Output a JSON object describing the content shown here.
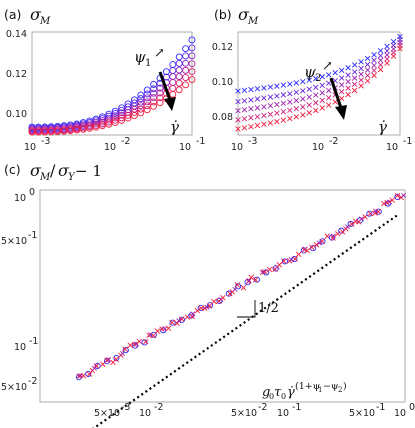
{
  "chart_data": [
    {
      "type": "scatter",
      "panel": "(a)",
      "label_parts": {
        "sigma": "σ",
        "sub": "M"
      },
      "x_scale": "log",
      "xlim": [
        0.001,
        0.1
      ],
      "ylim": [
        0.088,
        0.14
      ],
      "xticks": [
        "10",
        "10",
        "10"
      ],
      "xtick_exp": [
        "-3",
        "-2",
        "-1"
      ],
      "yticks": [
        "0.14",
        "0.12",
        "0.10"
      ],
      "ytick_values": [
        0.14,
        0.12,
        0.1
      ],
      "marker": "circle",
      "annotation": {
        "psi": "ψ",
        "sub": "1",
        "arrow": "↗"
      },
      "xaxis_symbol": "γ̇",
      "series": [
        {
          "color": "#2b2bff",
          "y_start": 0.092,
          "y_end": 0.136
        },
        {
          "color": "#5a28e6",
          "y_start": 0.0915,
          "y_end": 0.132
        },
        {
          "color": "#8326c8",
          "y_start": 0.091,
          "y_end": 0.128
        },
        {
          "color": "#b023a0",
          "y_start": 0.0905,
          "y_end": 0.124
        },
        {
          "color": "#d8206e",
          "y_start": 0.09,
          "y_end": 0.12
        },
        {
          "color": "#f21c3c",
          "y_start": 0.0895,
          "y_end": 0.116
        }
      ]
    },
    {
      "type": "scatter",
      "panel": "(b)",
      "label_parts": {
        "sigma": "σ",
        "sub": "M"
      },
      "x_scale": "log",
      "xlim": [
        0.001,
        0.1
      ],
      "ylim": [
        0.066,
        0.134
      ],
      "xticks": [
        "10",
        "10",
        "10"
      ],
      "xtick_exp": [
        "-3",
        "-2",
        "-1"
      ],
      "yticks": [
        "0.12",
        "0.10",
        "0.08"
      ],
      "ytick_values": [
        0.12,
        0.1,
        0.08
      ],
      "marker": "cross",
      "annotation": {
        "psi": "ψ",
        "sub": "2",
        "arrow": "↗"
      },
      "xaxis_symbol": "γ̇",
      "series": [
        {
          "color": "#2b2bff",
          "y_start": 0.095,
          "y_end": 0.131
        },
        {
          "color": "#6a27dc",
          "y_start": 0.088,
          "y_end": 0.129
        },
        {
          "color": "#9e24b0",
          "y_start": 0.082,
          "y_end": 0.127
        },
        {
          "color": "#d2207a",
          "y_start": 0.076,
          "y_end": 0.125
        },
        {
          "color": "#f21c3c",
          "y_start": 0.07,
          "y_end": 0.123
        }
      ]
    },
    {
      "type": "scatter",
      "panel": "(c)",
      "label_parts": {
        "sigma": "σ",
        "subM": "M",
        "slash": "/",
        "subY": "Y",
        "tail": " − 1"
      },
      "x_scale": "log",
      "y_scale": "log",
      "xlim": [
        0.0015,
        1.0
      ],
      "ylim": [
        0.043,
        1.0
      ],
      "xticks": [
        "5×10",
        "10",
        "5×10",
        "10",
        "5×10",
        "10"
      ],
      "xtick_exp": [
        "-3",
        "-2",
        "-2",
        "-1",
        "-1",
        "0"
      ],
      "xtick_values": [
        0.005,
        0.01,
        0.05,
        0.1,
        0.5,
        1.0
      ],
      "yticks": [
        "10",
        "5×10",
        "10",
        "5×10"
      ],
      "ytick_exp": [
        "0",
        "-1",
        "-1",
        "-2"
      ],
      "ytick_values": [
        1.0,
        0.5,
        0.1,
        0.05
      ],
      "markers": [
        "circle",
        "cross"
      ],
      "colors": [
        "#2b2bff",
        "#f21c3c",
        "#9e24b0"
      ],
      "collapse_y_at_xmin": 0.045,
      "collapse_y_at_xmax": 0.93,
      "reference_line": {
        "y_at_xmin": 0.032,
        "y_at_xmax": 0.7,
        "style": "dotted",
        "slope": "1/2"
      },
      "xaxis_label": {
        "g": "g",
        "sub0": "0",
        "tau": "τ",
        "sub0b": "0",
        "gdot": "γ̇",
        "exp": "(1+ψ",
        "e1": "1",
        "e2": "−ψ",
        "e3": "2",
        "e4": ")"
      }
    }
  ]
}
